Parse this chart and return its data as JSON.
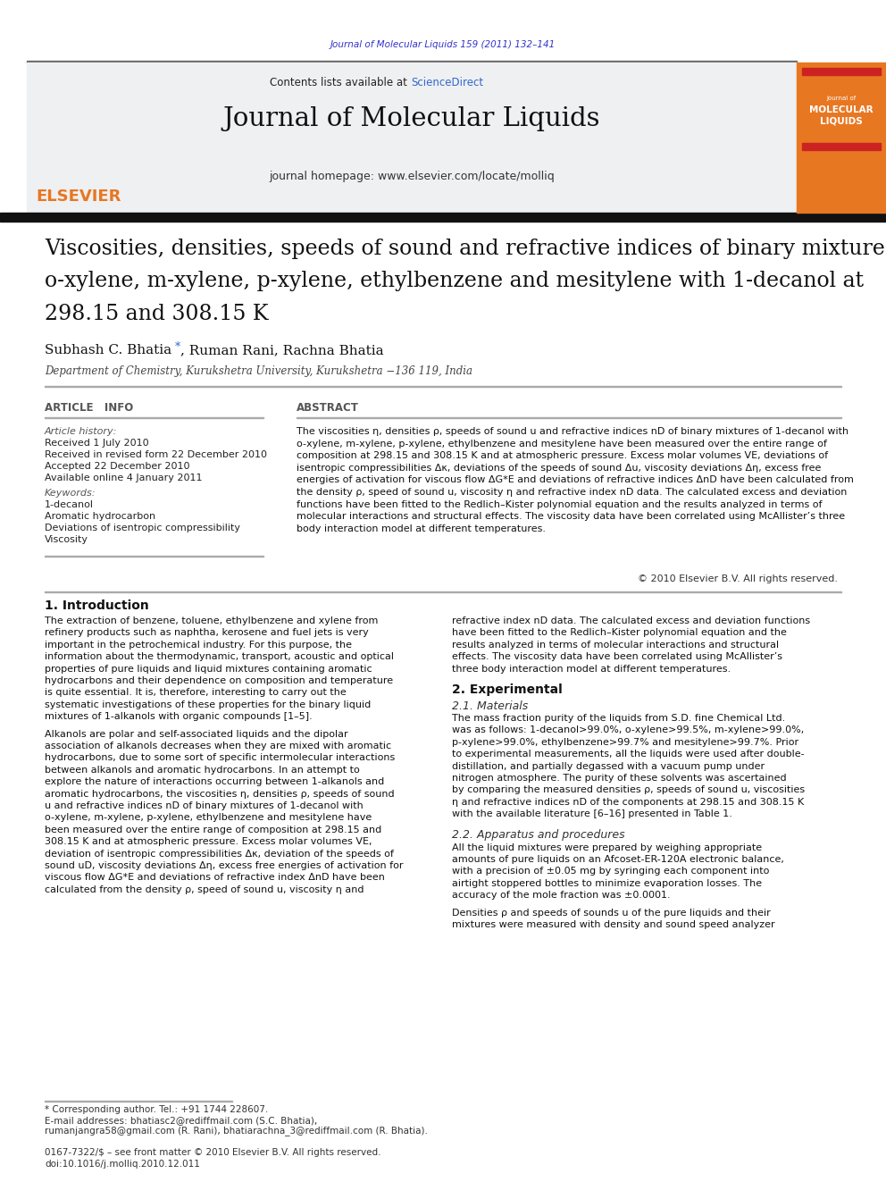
{
  "journal_ref": "Journal of Molecular Liquids 159 (2011) 132–141",
  "journal_ref_color": "#3333cc",
  "sciencedirect_color": "#3366cc",
  "journal_name": "Journal of Molecular Liquids",
  "journal_homepage": "journal homepage: www.elsevier.com/locate/molliq",
  "elsevier_color": "#E87722",
  "header_bg": "#eef0f2",
  "orange_sidebar": "#E87722",
  "article_info_label": "ARTICLE   INFO",
  "abstract_label": "ABSTRACT",
  "article_history_label": "Article history:",
  "received1": "Received 1 July 2010",
  "received2": "Received in revised form 22 December 2010",
  "accepted": "Accepted 22 December 2010",
  "available": "Available online 4 January 2011",
  "keywords_label": "Keywords:",
  "keyword1": "1-decanol",
  "keyword2": "Aromatic hydrocarbon",
  "keyword3": "Deviations of isentropic compressibility",
  "keyword4": "Viscosity",
  "abstract_text": "The viscosities η, densities ρ, speeds of sound u and refractive indices nD of binary mixtures of 1-decanol with\no-xylene, m-xylene, p-xylene, ethylbenzene and mesitylene have been measured over the entire range of\ncomposition at 298.15 and 308.15 K and at atmospheric pressure. Excess molar volumes VE, deviations of\nisentropic compressibilities Δκ, deviations of the speeds of sound Δu, viscosity deviations Δη, excess free\nenergies of activation for viscous flow ΔG*E and deviations of refractive indices ΔnD have been calculated from\nthe density ρ, speed of sound u, viscosity η and refractive index nD data. The calculated excess and deviation\nfunctions have been fitted to the Redlich–Kister polynomial equation and the results analyzed in terms of\nmolecular interactions and structural effects. The viscosity data have been correlated using McAllister’s three\nbody interaction model at different temperatures.",
  "copyright": "© 2010 Elsevier B.V. All rights reserved.",
  "intro_heading": "1. Introduction",
  "intro_col1_para1": "The extraction of benzene, toluene, ethylbenzene and xylene from\nrefinery products such as naphtha, kerosene and fuel jets is very\nimportant in the petrochemical industry. For this purpose, the\ninformation about the thermodynamic, transport, acoustic and optical\nproperties of pure liquids and liquid mixtures containing aromatic\nhydrocarbons and their dependence on composition and temperature\nis quite essential. It is, therefore, interesting to carry out the\nsystematic investigations of these properties for the binary liquid\nmixtures of 1-alkanols with organic compounds [1–5].",
  "intro_col1_para2": "Alkanols are polar and self-associated liquids and the dipolar\nassociation of alkanols decreases when they are mixed with aromatic\nhydrocarbons, due to some sort of specific intermolecular interactions\nbetween alkanols and aromatic hydrocarbons. In an attempt to\nexplore the nature of interactions occurring between 1-alkanols and\naromatic hydrocarbons, the viscosities η, densities ρ, speeds of sound\nu and refractive indices nD of binary mixtures of 1-decanol with\no-xylene, m-xylene, p-xylene, ethylbenzene and mesitylene have\nbeen measured over the entire range of composition at 298.15 and\n308.15 K and at atmospheric pressure. Excess molar volumes VE,\ndeviation of isentropic compressibilities Δκ, deviation of the speeds of\nsound uD, viscosity deviations Δη, excess free energies of activation for\nviscous flow ΔG*E and deviations of refractive index ΔnD have been\ncalculated from the density ρ, speed of sound u, viscosity η and",
  "intro_col2_para1": "refractive index nD data. The calculated excess and deviation functions\nhave been fitted to the Redlich–Kister polynomial equation and the\nresults analyzed in terms of molecular interactions and structural\neffects. The viscosity data have been correlated using McAllister’s\nthree body interaction model at different temperatures.",
  "experimental_heading": "2. Experimental",
  "materials_heading": "2.1. Materials",
  "materials_text": "The mass fraction purity of the liquids from S.D. fine Chemical Ltd.\nwas as follows: 1-decanol>99.0%, o-xylene>99.5%, m-xylene>99.0%,\np-xylene>99.0%, ethylbenzene>99.7% and mesitylene>99.7%. Prior\nto experimental measurements, all the liquids were used after double-\ndistillation, and partially degassed with a vacuum pump under\nnitrogen atmosphere. The purity of these solvents was ascertained\nby comparing the measured densities ρ, speeds of sound u, viscosities\nη and refractive indices nD of the components at 298.15 and 308.15 K\nwith the available literature [6–16] presented in Table 1.",
  "apparatus_heading": "2.2. Apparatus and procedures",
  "apparatus_text1": "All the liquid mixtures were prepared by weighing appropriate\namounts of pure liquids on an Afcoset-ER-120A electronic balance,\nwith a precision of ±0.05 mg by syringing each component into\nairtight stoppered bottles to minimize evaporation losses. The\naccuracy of the mole fraction was ±0.0001.",
  "apparatus_text2": "Densities ρ and speeds of sounds u of the pure liquids and their\nmixtures were measured with density and sound speed analyzer",
  "footnote_star": "* Corresponding author. Tel.: +91 1744 228607.",
  "footnote_email1": "E-mail addresses: bhatiasc2@rediffmail.com (S.C. Bhatia),",
  "footnote_email2": "rumanjangra58@gmail.com (R. Rani), bhatiarachna_3@rediffmail.com (R. Bhatia).",
  "issn_line": "0167-7322/$ – see front matter © 2010 Elsevier B.V. All rights reserved.",
  "doi_line": "doi:10.1016/j.molliq.2010.12.011",
  "background_color": "#ffffff"
}
